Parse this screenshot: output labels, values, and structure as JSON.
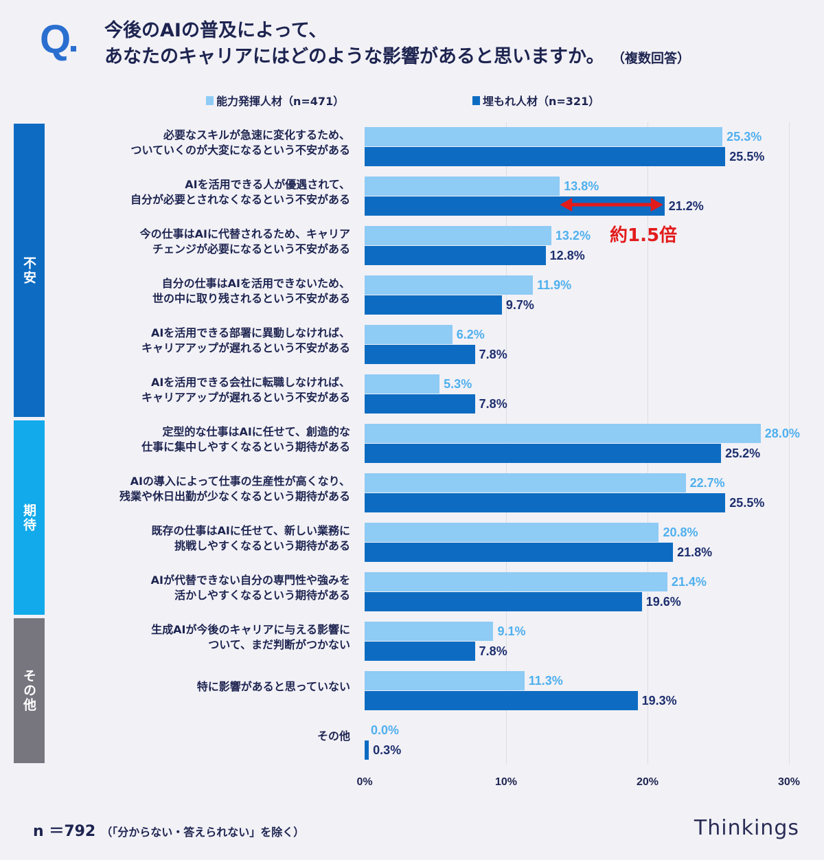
{
  "header": {
    "q_mark": "Q",
    "title_line1": "今後のAIの普及によって、",
    "title_line2": "あなたのキャリアにはどのような影響があると思いますか。",
    "note": "（複数回答）"
  },
  "footer": {
    "n": "n ＝792",
    "note": "（「分からない・答えられない」を除く）",
    "brand": "Thinkings"
  },
  "chart_data": {
    "type": "bar",
    "orientation": "horizontal",
    "xlim": [
      0,
      30
    ],
    "ticks": [
      "0%",
      "10%",
      "20%",
      "30%"
    ],
    "grid": true,
    "legend_position": "top",
    "colors": {
      "light": "#8ecbf5",
      "dark": "#0d6cc2",
      "light_label": "#4fb0ee",
      "dark_label": "#1d2f6e",
      "annotation": "#e21b1b"
    },
    "series": [
      {
        "name": "能力発揮人材（n=471）",
        "values": [
          25.3,
          13.8,
          13.2,
          11.9,
          6.2,
          5.3,
          28.0,
          22.7,
          20.8,
          21.4,
          9.1,
          11.3,
          0.0
        ]
      },
      {
        "name": "埋もれ人材（n=321）",
        "values": [
          25.5,
          21.2,
          12.8,
          9.7,
          7.8,
          7.8,
          25.2,
          25.5,
          21.8,
          19.6,
          7.8,
          19.3,
          0.3
        ]
      }
    ],
    "categories": [
      "必要なスキルが急速に変化するため、\nついていくのが大変になるという不安がある",
      "AIを活用できる人が優遇されて、\n自分が必要とされなくなるという不安がある",
      "今の仕事はAIに代替されるため、キャリア\nチェンジが必要になるという不安がある",
      "自分の仕事はAIを活用できないため、\n世の中に取り残されるという不安がある",
      "AIを活用できる部署に異動しなければ、\nキャリアアップが遅れるという不安がある",
      "AIを活用できる会社に転職しなければ、\nキャリアアップが遅れるという不安がある",
      "定型的な仕事はAIに任せて、創造的な\n仕事に集中しやすくなるという期待がある",
      "AIの導入によって仕事の生産性が高くなり、\n残業や休日出勤が少なくなるという期待がある",
      "既存の仕事はAIに任せて、新しい業務に\n挑戦しやすくなるという期待がある",
      "AIが代替できない自分の専門性や強みを\n活かしやすくなるという期待がある",
      "生成AIが今後のキャリアに与える影響に\nついて、まだ判断がつかない",
      "特に影響があると思っていない",
      "その他"
    ],
    "groups": [
      {
        "label": "不安",
        "color": "#0d6cc2",
        "from": 0,
        "to": 5
      },
      {
        "label": "期待",
        "color": "#12aaea",
        "from": 6,
        "to": 9
      },
      {
        "label": "その他",
        "color": "#77767f",
        "from": 10,
        "to": 12
      }
    ],
    "annotation": {
      "text": "約1.5倍",
      "category_index": 1,
      "from": 13.8,
      "to": 21.2
    }
  }
}
